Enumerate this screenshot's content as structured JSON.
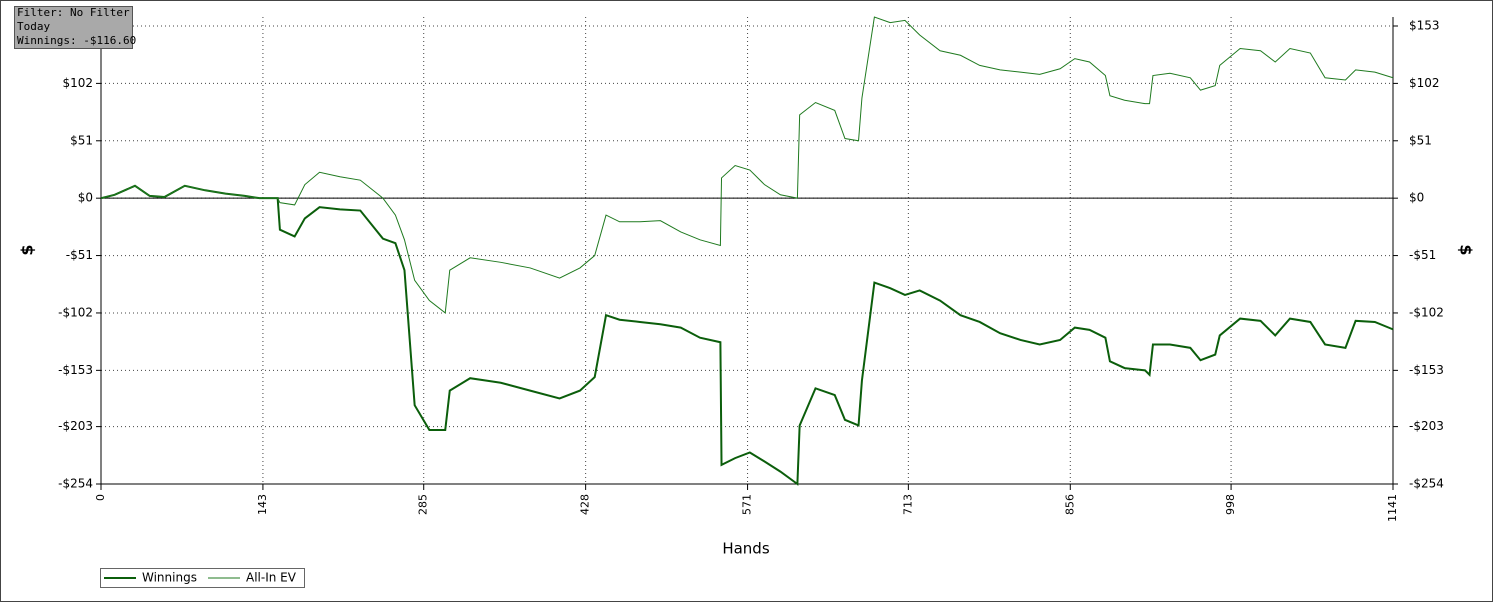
{
  "chart_data": {
    "type": "line",
    "info_box": {
      "filter": "Filter: No Filter",
      "period": "Today",
      "winnings": "Winnings: -$116.60"
    },
    "x_label": "Hands",
    "y_label": "$",
    "y2_label": "$",
    "x": [
      0,
      12,
      30,
      43,
      56,
      74,
      92,
      110,
      127,
      140,
      156,
      158,
      171,
      180,
      193,
      211,
      229,
      249,
      260,
      268,
      277,
      290,
      304,
      308,
      326,
      353,
      379,
      405,
      423,
      436,
      446,
      458,
      476,
      494,
      512,
      529,
      547,
      548,
      560,
      573,
      586,
      600,
      615,
      617,
      631,
      648,
      657,
      669,
      672,
      683,
      697,
      710,
      723,
      741,
      759,
      776,
      794,
      812,
      829,
      847,
      860,
      873,
      887,
      891,
      904,
      922,
      926,
      929,
      944,
      962,
      971,
      984,
      988,
      1006,
      1024,
      1037,
      1050,
      1068,
      1081,
      1099,
      1108,
      1125,
      1141
    ],
    "series": [
      {
        "name": "Winnings",
        "color": "#0b5e0b",
        "width": 2,
        "values": [
          0,
          3,
          11,
          2,
          1,
          11,
          7,
          4,
          2,
          0,
          0,
          -28,
          -34,
          -18,
          -8,
          -10,
          -11,
          -36,
          -40,
          -64,
          -184,
          -206,
          -206,
          -171,
          -160,
          -164,
          -171,
          -178,
          -171,
          -159,
          -104,
          -108,
          -110,
          -112,
          -115,
          -124,
          -128,
          -237,
          -231,
          -226,
          -234,
          -243,
          -254,
          -202,
          -169,
          -175,
          -197,
          -202,
          -162,
          -75,
          -80,
          -86,
          -82,
          -91,
          -104,
          -110,
          -120,
          -126,
          -130,
          -126,
          -115,
          -117,
          -124,
          -145,
          -151,
          -153,
          -157,
          -130,
          -130,
          -133,
          -144,
          -139,
          -122,
          -107,
          -109,
          -122,
          -107,
          -110,
          -130,
          -133,
          -109,
          -110,
          -116.6
        ]
      },
      {
        "name": "All-In EV",
        "color": "#1f7a1f",
        "width": 1,
        "values": [
          0,
          3,
          11,
          2,
          1,
          11,
          7,
          4,
          2,
          0,
          0,
          -4,
          -6,
          12,
          23,
          19,
          16,
          0,
          -15,
          -37,
          -73,
          -91,
          -102,
          -64,
          -53,
          -57,
          -62,
          -71,
          -62,
          -51,
          -15,
          -21,
          -21,
          -20,
          -30,
          -37,
          -42,
          18,
          29,
          25,
          12,
          3,
          0,
          74,
          85,
          78,
          53,
          51,
          89,
          161,
          156,
          158,
          145,
          131,
          127,
          118,
          114,
          112,
          110,
          115,
          124,
          121,
          109,
          91,
          87,
          84,
          84,
          109,
          111,
          107,
          96,
          100,
          118,
          133,
          131,
          121,
          133,
          129,
          107,
          105,
          114,
          112,
          107
        ]
      }
    ],
    "xlim": [
      0,
      1141
    ],
    "xticks": [
      0,
      143,
      285,
      428,
      571,
      713,
      856,
      998,
      1141
    ],
    "ylim": [
      -254,
      161
    ],
    "yticks": [
      {
        "value": 153,
        "label": "$153"
      },
      {
        "value": 102,
        "label": "$102"
      },
      {
        "value": 51,
        "label": "$51"
      },
      {
        "value": 0,
        "label": "$0"
      },
      {
        "value": -51,
        "label": "-$51"
      },
      {
        "value": -102,
        "label": "-$102"
      },
      {
        "value": -153,
        "label": "-$153"
      },
      {
        "value": -203,
        "label": "-$203"
      },
      {
        "value": -254,
        "label": "-$254"
      }
    ],
    "y2lim": [
      -254,
      161
    ],
    "y2ticks": [
      {
        "value": 153,
        "label": "$153"
      },
      {
        "value": 102,
        "label": "$102"
      },
      {
        "value": 51,
        "label": "$51"
      },
      {
        "value": 0,
        "label": "$0"
      },
      {
        "value": -51,
        "label": "-$51"
      },
      {
        "value": -102,
        "label": "-$102"
      },
      {
        "value": -153,
        "label": "-$153"
      },
      {
        "value": -203,
        "label": "-$203"
      },
      {
        "value": -254,
        "label": "-$254"
      }
    ],
    "grid": true
  }
}
